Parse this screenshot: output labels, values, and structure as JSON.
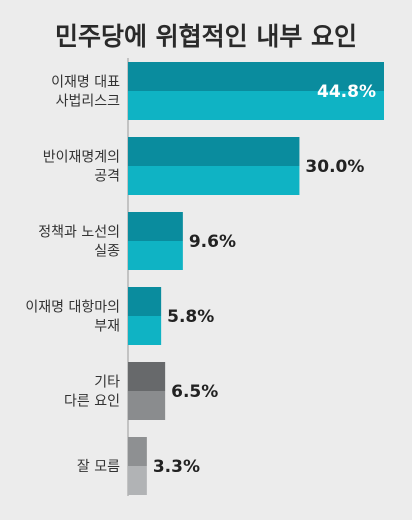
{
  "chart_data": {
    "type": "bar",
    "orientation": "horizontal",
    "title": "민주당에 위협적인 내부 요인",
    "xlabel": "",
    "ylabel": "",
    "grid": false,
    "unit": "%",
    "categories": [
      [
        "이재명 대표",
        "사법리스크"
      ],
      [
        "반이재명계의",
        "공격"
      ],
      [
        "정책과 노선의",
        "실종"
      ],
      [
        "이재명 대항마의",
        "부재"
      ],
      [
        "기타",
        "다른 요인"
      ],
      [
        "잘 모름"
      ]
    ],
    "values": [
      44.8,
      30.0,
      9.6,
      5.8,
      6.5,
      3.3
    ],
    "value_labels": [
      "44.8%",
      "30.0%",
      "9.6%",
      "5.8%",
      "6.5%",
      "3.3%"
    ],
    "colors": [
      {
        "top": "#0a8c9e",
        "bottom": "#0fb3c4"
      },
      {
        "top": "#0a8c9e",
        "bottom": "#0fb3c4"
      },
      {
        "top": "#0a8c9e",
        "bottom": "#0fb3c4"
      },
      {
        "top": "#0a8c9e",
        "bottom": "#0fb3c4"
      },
      {
        "top": "#67696b",
        "bottom": "#8a8c8e"
      },
      {
        "top": "#8e9092",
        "bottom": "#b1b3b5"
      }
    ],
    "xlim": [
      0,
      44.8
    ]
  }
}
